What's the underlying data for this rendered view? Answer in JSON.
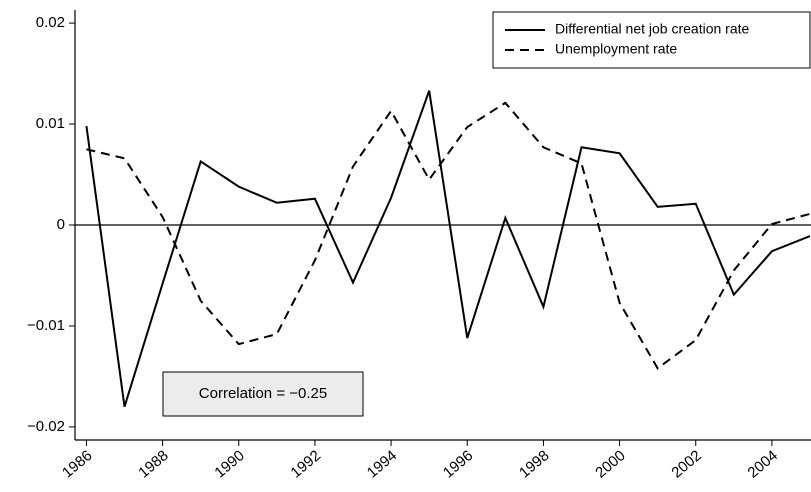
{
  "chart_data": {
    "type": "line",
    "x": [
      1986,
      1987,
      1988,
      1989,
      1990,
      1991,
      1992,
      1993,
      1994,
      1995,
      1996,
      1997,
      1998,
      1999,
      2000,
      2001,
      2002,
      2003,
      2004,
      2005
    ],
    "series": [
      {
        "name": "Differential net job creation rate",
        "color": "#000000",
        "dash": "solid",
        "values": [
          0.0098,
          -0.018,
          -0.0058,
          0.0063,
          0.0038,
          0.0022,
          0.0026,
          -0.0057,
          0.0027,
          0.0133,
          -0.0112,
          0.0007,
          -0.0081,
          0.0077,
          0.0071,
          0.0018,
          0.0021,
          -0.0069,
          -0.0026,
          -0.0011
        ]
      },
      {
        "name": "Unemployment rate",
        "color": "#000000",
        "dash": "dashed",
        "values": [
          0.0075,
          0.0066,
          0.0008,
          -0.0075,
          -0.0118,
          -0.0108,
          -0.0035,
          0.0058,
          0.0113,
          0.0045,
          0.0097,
          0.0121,
          0.0077,
          0.0061,
          -0.0077,
          -0.0142,
          -0.0114,
          -0.0045,
          0.0001,
          0.0011
        ]
      }
    ],
    "xlim": [
      1985.7,
      2005
    ],
    "xticks": [
      1986,
      1988,
      1990,
      1992,
      1994,
      1996,
      1998,
      2000,
      2002,
      2004
    ],
    "ylim": [
      -0.021,
      0.021
    ],
    "yticks": [
      {
        "value": -0.02,
        "label": "−0.02"
      },
      {
        "value": -0.01,
        "label": "−0.01"
      },
      0,
      0.01,
      0.02
    ],
    "reference_line": 0,
    "annotation": "Correlation = −0.25",
    "legend": "top-right"
  }
}
